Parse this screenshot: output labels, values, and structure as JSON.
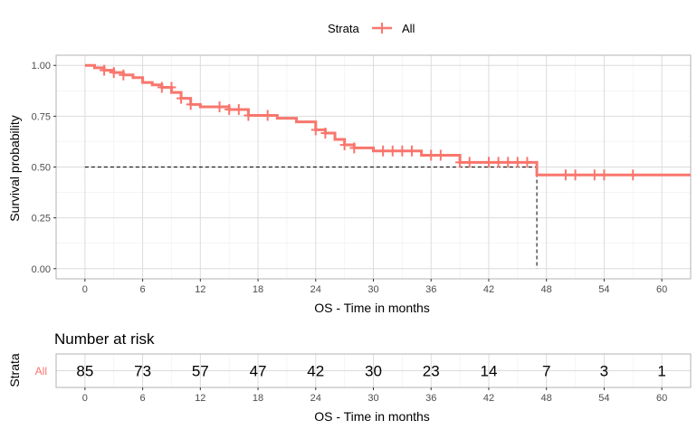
{
  "colors": {
    "series": "#F8766D",
    "grid_major": "#dcdcdc",
    "grid_minor": "#efefef",
    "panel_border": "#b3b3b3",
    "median_line": "#000000"
  },
  "legend": {
    "title": "Strata",
    "label": "All",
    "position": "top"
  },
  "chart_data": [
    {
      "type": "line",
      "subtype": "kaplan-meier-step",
      "title": "",
      "xlabel": "OS - Time in months",
      "ylabel": "Survival probability",
      "xlim": [
        -3,
        63
      ],
      "ylim": [
        -0.05,
        1.05
      ],
      "xticks": [
        0,
        6,
        12,
        18,
        24,
        30,
        36,
        42,
        48,
        54,
        60
      ],
      "yticks": [
        0.0,
        0.25,
        0.5,
        0.75,
        1.0
      ],
      "ytick_labels": [
        "0.00",
        "0.25",
        "0.50",
        "0.75",
        "1.00"
      ],
      "grid": true,
      "median_survival": {
        "time": 47,
        "probability": 0.5
      },
      "series": [
        {
          "name": "All",
          "steps": [
            [
              0,
              1.0
            ],
            [
              1,
              0.988
            ],
            [
              2,
              0.976
            ],
            [
              3,
              0.965
            ],
            [
              4,
              0.953
            ],
            [
              5,
              0.94
            ],
            [
              6,
              0.916
            ],
            [
              7,
              0.904
            ],
            [
              8,
              0.892
            ],
            [
              9,
              0.867
            ],
            [
              10,
              0.838
            ],
            [
              11,
              0.808
            ],
            [
              12,
              0.796
            ],
            [
              15,
              0.783
            ],
            [
              17,
              0.754
            ],
            [
              20,
              0.74
            ],
            [
              22,
              0.722
            ],
            [
              24,
              0.683
            ],
            [
              25,
              0.667
            ],
            [
              26,
              0.636
            ],
            [
              27,
              0.609
            ],
            [
              28,
              0.594
            ],
            [
              30,
              0.579
            ],
            [
              35,
              0.558
            ],
            [
              39,
              0.523
            ],
            [
              47,
              0.461
            ],
            [
              63,
              0.461
            ]
          ],
          "censored": [
            [
              2,
              0.976
            ],
            [
              3,
              0.965
            ],
            [
              4,
              0.953
            ],
            [
              8,
              0.892
            ],
            [
              9,
              0.892
            ],
            [
              10,
              0.838
            ],
            [
              11,
              0.808
            ],
            [
              14,
              0.796
            ],
            [
              15,
              0.783
            ],
            [
              16,
              0.783
            ],
            [
              17,
              0.754
            ],
            [
              19,
              0.754
            ],
            [
              24,
              0.683
            ],
            [
              25,
              0.667
            ],
            [
              27,
              0.609
            ],
            [
              28,
              0.594
            ],
            [
              31,
              0.579
            ],
            [
              32,
              0.579
            ],
            [
              33,
              0.579
            ],
            [
              34,
              0.579
            ],
            [
              36,
              0.558
            ],
            [
              37,
              0.558
            ],
            [
              39,
              0.523
            ],
            [
              40,
              0.523
            ],
            [
              42,
              0.523
            ],
            [
              43,
              0.523
            ],
            [
              44,
              0.523
            ],
            [
              45,
              0.523
            ],
            [
              46,
              0.523
            ],
            [
              50,
              0.461
            ],
            [
              51,
              0.461
            ],
            [
              53,
              0.461
            ],
            [
              54,
              0.461
            ],
            [
              57,
              0.461
            ]
          ]
        }
      ]
    },
    {
      "type": "table",
      "title": "Number at risk",
      "xlabel": "OS - Time in months",
      "ylabel": "Strata",
      "row_label": "All",
      "times": [
        0,
        6,
        12,
        18,
        24,
        30,
        36,
        42,
        48,
        54,
        60
      ],
      "values": [
        85,
        73,
        57,
        47,
        42,
        30,
        23,
        14,
        7,
        3,
        1
      ]
    }
  ]
}
